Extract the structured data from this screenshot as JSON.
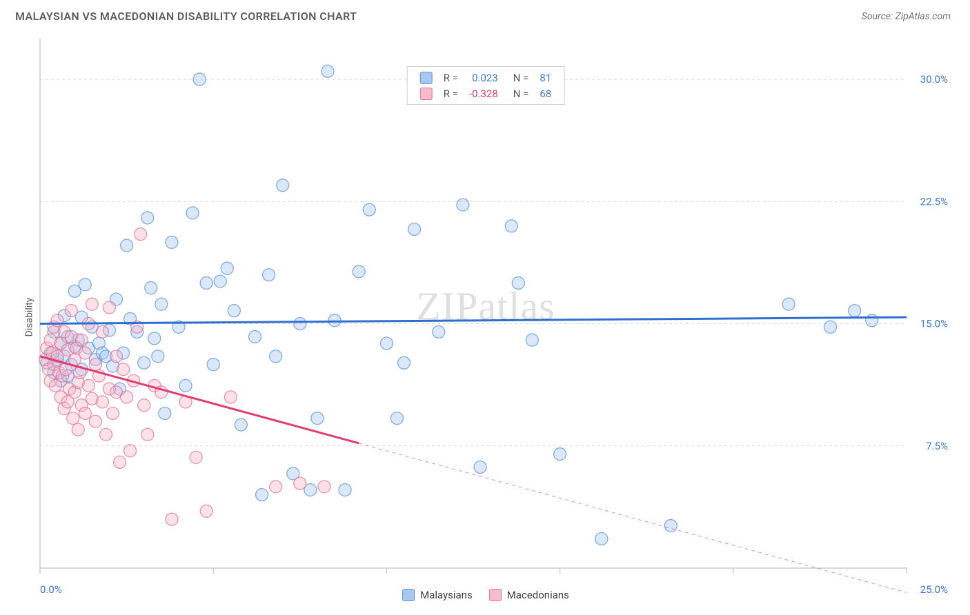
{
  "title": "MALAYSIAN VS MACEDONIAN DISABILITY CORRELATION CHART",
  "source_label": "Source: ZipAtlas.com",
  "watermark": "ZIPatlas",
  "ylabel": "Disability",
  "chart": {
    "type": "scatter",
    "background_color": "#ffffff",
    "grid_color": "#d9d9d9",
    "axis_color": "#cccccc",
    "xlim": [
      0,
      25
    ],
    "ylim": [
      0,
      32.5
    ],
    "x_ticks": [
      0,
      5,
      10,
      15,
      20,
      25
    ],
    "x_tick_labels": [
      "0.0%",
      "",
      "",
      "",
      "",
      "25.0%"
    ],
    "x_label_color": "#3b78d8",
    "y_ticks": [
      7.5,
      15.0,
      22.5,
      30.0
    ],
    "y_tick_labels": [
      "7.5%",
      "15.0%",
      "22.5%",
      "30.0%"
    ],
    "y_label_color": "#3b78d8",
    "marker_radius": 9,
    "marker_opacity": 0.38,
    "marker_stroke_opacity": 0.75,
    "line_width": 3,
    "series": [
      {
        "name": "Malaysians",
        "color_fill": "#9ec3ef",
        "color_stroke": "#5a94d6",
        "line_color": "#2e6fd0",
        "R": "0.023",
        "N": "81",
        "trend": {
          "y_at_x0": 15.0,
          "y_at_xmax": 15.4
        },
        "points": [
          [
            0.2,
            12.6
          ],
          [
            0.3,
            13.2
          ],
          [
            0.4,
            12.0
          ],
          [
            0.4,
            14.5
          ],
          [
            0.5,
            12.8
          ],
          [
            0.6,
            11.5
          ],
          [
            0.6,
            13.8
          ],
          [
            0.7,
            13.0
          ],
          [
            0.7,
            15.5
          ],
          [
            0.8,
            14.2
          ],
          [
            0.8,
            11.8
          ],
          [
            0.9,
            12.5
          ],
          [
            1.0,
            13.6
          ],
          [
            1.0,
            17.0
          ],
          [
            1.1,
            14.0
          ],
          [
            1.2,
            12.2
          ],
          [
            1.2,
            15.4
          ],
          [
            1.3,
            17.4
          ],
          [
            1.4,
            13.5
          ],
          [
            1.5,
            14.8
          ],
          [
            1.6,
            12.8
          ],
          [
            1.7,
            13.8
          ],
          [
            1.8,
            13.2
          ],
          [
            1.9,
            13.0
          ],
          [
            2.0,
            14.6
          ],
          [
            2.1,
            12.4
          ],
          [
            2.2,
            16.5
          ],
          [
            2.3,
            11.0
          ],
          [
            2.4,
            13.2
          ],
          [
            2.5,
            19.8
          ],
          [
            2.6,
            15.3
          ],
          [
            2.8,
            14.5
          ],
          [
            3.0,
            12.6
          ],
          [
            3.1,
            21.5
          ],
          [
            3.2,
            17.2
          ],
          [
            3.3,
            14.1
          ],
          [
            3.4,
            13.0
          ],
          [
            3.5,
            16.2
          ],
          [
            3.6,
            9.5
          ],
          [
            3.8,
            20.0
          ],
          [
            4.0,
            14.8
          ],
          [
            4.2,
            11.2
          ],
          [
            4.4,
            21.8
          ],
          [
            4.6,
            30.0
          ],
          [
            4.8,
            17.5
          ],
          [
            5.0,
            12.5
          ],
          [
            5.2,
            17.6
          ],
          [
            5.4,
            18.4
          ],
          [
            5.6,
            15.8
          ],
          [
            5.8,
            8.8
          ],
          [
            6.2,
            14.2
          ],
          [
            6.4,
            4.5
          ],
          [
            6.6,
            18.0
          ],
          [
            6.8,
            13.0
          ],
          [
            7.0,
            23.5
          ],
          [
            7.3,
            5.8
          ],
          [
            7.5,
            15.0
          ],
          [
            7.8,
            4.8
          ],
          [
            8.0,
            9.2
          ],
          [
            8.3,
            30.5
          ],
          [
            8.5,
            15.2
          ],
          [
            8.8,
            4.8
          ],
          [
            9.2,
            18.2
          ],
          [
            9.5,
            22.0
          ],
          [
            10.0,
            13.8
          ],
          [
            10.3,
            9.2
          ],
          [
            10.5,
            12.6
          ],
          [
            10.8,
            20.8
          ],
          [
            11.5,
            14.5
          ],
          [
            12.2,
            22.3
          ],
          [
            12.7,
            6.2
          ],
          [
            13.6,
            21.0
          ],
          [
            13.8,
            17.5
          ],
          [
            14.2,
            14.0
          ],
          [
            15.0,
            7.0
          ],
          [
            16.2,
            1.8
          ],
          [
            18.2,
            2.6
          ],
          [
            21.6,
            16.2
          ],
          [
            22.8,
            14.8
          ],
          [
            23.5,
            15.8
          ],
          [
            24.0,
            15.2
          ]
        ]
      },
      {
        "name": "Macedonians",
        "color_fill": "#f5b4c5",
        "color_stroke": "#e47295",
        "line_color": "#e13d6f",
        "R": "-0.328",
        "N": "68",
        "trend": {
          "y_at_x0": 13.0,
          "y_at_xmax": -1.5,
          "solid_until_x": 9.2
        },
        "points": [
          [
            0.15,
            12.8
          ],
          [
            0.2,
            13.5
          ],
          [
            0.25,
            12.2
          ],
          [
            0.3,
            14.0
          ],
          [
            0.3,
            11.5
          ],
          [
            0.35,
            13.2
          ],
          [
            0.4,
            12.5
          ],
          [
            0.4,
            14.8
          ],
          [
            0.45,
            11.2
          ],
          [
            0.5,
            13.0
          ],
          [
            0.5,
            15.2
          ],
          [
            0.55,
            12.0
          ],
          [
            0.6,
            10.5
          ],
          [
            0.6,
            13.8
          ],
          [
            0.65,
            11.8
          ],
          [
            0.7,
            14.5
          ],
          [
            0.7,
            9.8
          ],
          [
            0.75,
            12.2
          ],
          [
            0.8,
            13.4
          ],
          [
            0.8,
            10.2
          ],
          [
            0.85,
            11.0
          ],
          [
            0.9,
            14.2
          ],
          [
            0.9,
            15.8
          ],
          [
            0.95,
            9.2
          ],
          [
            1.0,
            12.8
          ],
          [
            1.0,
            10.8
          ],
          [
            1.05,
            13.5
          ],
          [
            1.1,
            11.4
          ],
          [
            1.1,
            8.5
          ],
          [
            1.15,
            12.0
          ],
          [
            1.2,
            14.0
          ],
          [
            1.2,
            10.0
          ],
          [
            1.3,
            9.5
          ],
          [
            1.3,
            13.2
          ],
          [
            1.4,
            15.0
          ],
          [
            1.4,
            11.2
          ],
          [
            1.5,
            10.4
          ],
          [
            1.5,
            16.2
          ],
          [
            1.6,
            9.0
          ],
          [
            1.6,
            12.5
          ],
          [
            1.7,
            11.8
          ],
          [
            1.8,
            10.2
          ],
          [
            1.8,
            14.5
          ],
          [
            1.9,
            8.2
          ],
          [
            2.0,
            16.0
          ],
          [
            2.0,
            11.0
          ],
          [
            2.1,
            9.5
          ],
          [
            2.2,
            13.0
          ],
          [
            2.2,
            10.8
          ],
          [
            2.3,
            6.5
          ],
          [
            2.4,
            12.2
          ],
          [
            2.5,
            10.5
          ],
          [
            2.6,
            7.2
          ],
          [
            2.7,
            11.5
          ],
          [
            2.8,
            14.8
          ],
          [
            2.9,
            20.5
          ],
          [
            3.0,
            10.0
          ],
          [
            3.1,
            8.2
          ],
          [
            3.3,
            11.2
          ],
          [
            3.5,
            10.8
          ],
          [
            3.8,
            3.0
          ],
          [
            4.2,
            10.2
          ],
          [
            4.5,
            6.8
          ],
          [
            4.8,
            3.5
          ],
          [
            5.5,
            10.5
          ],
          [
            6.8,
            5.0
          ],
          [
            7.5,
            5.2
          ],
          [
            8.2,
            5.0
          ]
        ]
      }
    ]
  },
  "legend_top": {
    "rows": [
      {
        "swatch": "#a9c8f0",
        "border": "#5a94d6",
        "r_label": "R =",
        "r_val": "0.023",
        "r_color": "#3b78d8",
        "n_label": "N =",
        "n_val": "81",
        "n_color": "#3b78d8"
      },
      {
        "swatch": "#f5bccb",
        "border": "#e47295",
        "r_label": "R =",
        "r_val": "-0.328",
        "r_color": "#e13d6f",
        "n_label": "N =",
        "n_val": "68",
        "n_color": "#3b78d8"
      }
    ]
  },
  "legend_bottom": [
    {
      "swatch": "#a9c8f0",
      "border": "#5a94d6",
      "label": "Malaysians"
    },
    {
      "swatch": "#f5bccb",
      "border": "#e47295",
      "label": "Macedonians"
    }
  ]
}
